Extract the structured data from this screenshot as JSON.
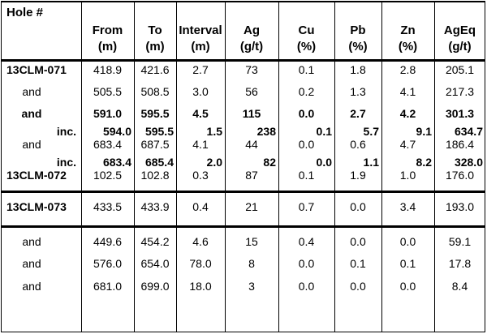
{
  "headers": [
    {
      "line1": "Hole #",
      "line2": ""
    },
    {
      "line1": "From",
      "line2": "(m)"
    },
    {
      "line1": "To",
      "line2": "(m)"
    },
    {
      "line1": "Interval",
      "line2": "(m)"
    },
    {
      "line1": "Ag",
      "line2": "(g/t)"
    },
    {
      "line1": "Cu",
      "line2": "(%)"
    },
    {
      "line1": "Pb",
      "line2": "(%)"
    },
    {
      "line1": "Zn",
      "line2": "(%)"
    },
    {
      "line1": "AgEq",
      "line2": "(g/t)"
    }
  ],
  "rows": [
    {
      "hole": "13CLM-071",
      "from": "418.9",
      "to": "421.6",
      "interval": "2.7",
      "ag": "73",
      "cu": "0.1",
      "pb": "1.8",
      "zn": "2.8",
      "ageq": "205.1",
      "style": "holehead"
    },
    {
      "hole": "and",
      "from": "505.5",
      "to": "508.5",
      "interval": "3.0",
      "ag": "56",
      "cu": "0.2",
      "pb": "1.3",
      "zn": "4.1",
      "ageq": "217.3",
      "style": "normal"
    },
    {
      "hole": "and",
      "from": "591.0",
      "to": "595.5",
      "interval": "4.5",
      "ag": "115",
      "cu": "0.0",
      "pb": "2.7",
      "zn": "4.2",
      "ageq": "301.3",
      "style": "bold"
    },
    {
      "hole": "inc.",
      "from": "594.0",
      "to": "595.5",
      "interval": "1.5",
      "ag": "238",
      "cu": "0.1",
      "pb": "5.7",
      "zn": "9.1",
      "ageq": "634.7",
      "style": "inc"
    },
    {
      "hole": "and",
      "from": "683.4",
      "to": "687.5",
      "interval": "4.1",
      "ag": "44",
      "cu": "0.0",
      "pb": "0.6",
      "zn": "4.7",
      "ageq": "186.4",
      "style": "normal"
    },
    {
      "hole": "inc.",
      "from": "683.4",
      "to": "685.4",
      "interval": "2.0",
      "ag": "82",
      "cu": "0.0",
      "pb": "1.1",
      "zn": "8.2",
      "ageq": "328.0",
      "style": "inc"
    },
    {
      "hole": "13CLM-072",
      "from": "102.5",
      "to": "102.8",
      "interval": "0.3",
      "ag": "87",
      "cu": "0.1",
      "pb": "1.9",
      "zn": "1.0",
      "ageq": "176.0",
      "style": "holehead"
    },
    {
      "hole": "13CLM-073",
      "from": "433.5",
      "to": "433.9",
      "interval": "0.4",
      "ag": "21",
      "cu": "0.7",
      "pb": "0.0",
      "zn": "3.4",
      "ageq": "193.0",
      "style": "holehead"
    },
    {
      "hole": "and",
      "from": "449.6",
      "to": "454.2",
      "interval": "4.6",
      "ag": "15",
      "cu": "0.4",
      "pb": "0.0",
      "zn": "0.0",
      "ageq": "59.1",
      "style": "normal"
    },
    {
      "hole": "and",
      "from": "576.0",
      "to": "654.0",
      "interval": "78.0",
      "ag": "8",
      "cu": "0.0",
      "pb": "0.1",
      "zn": "0.1",
      "ageq": "17.8",
      "style": "normal"
    },
    {
      "hole": "and",
      "from": "681.0",
      "to": "699.0",
      "interval": "18.0",
      "ag": "3",
      "cu": "0.0",
      "pb": "0.0",
      "zn": "0.0",
      "ageq": "8.4",
      "style": "normal"
    }
  ]
}
